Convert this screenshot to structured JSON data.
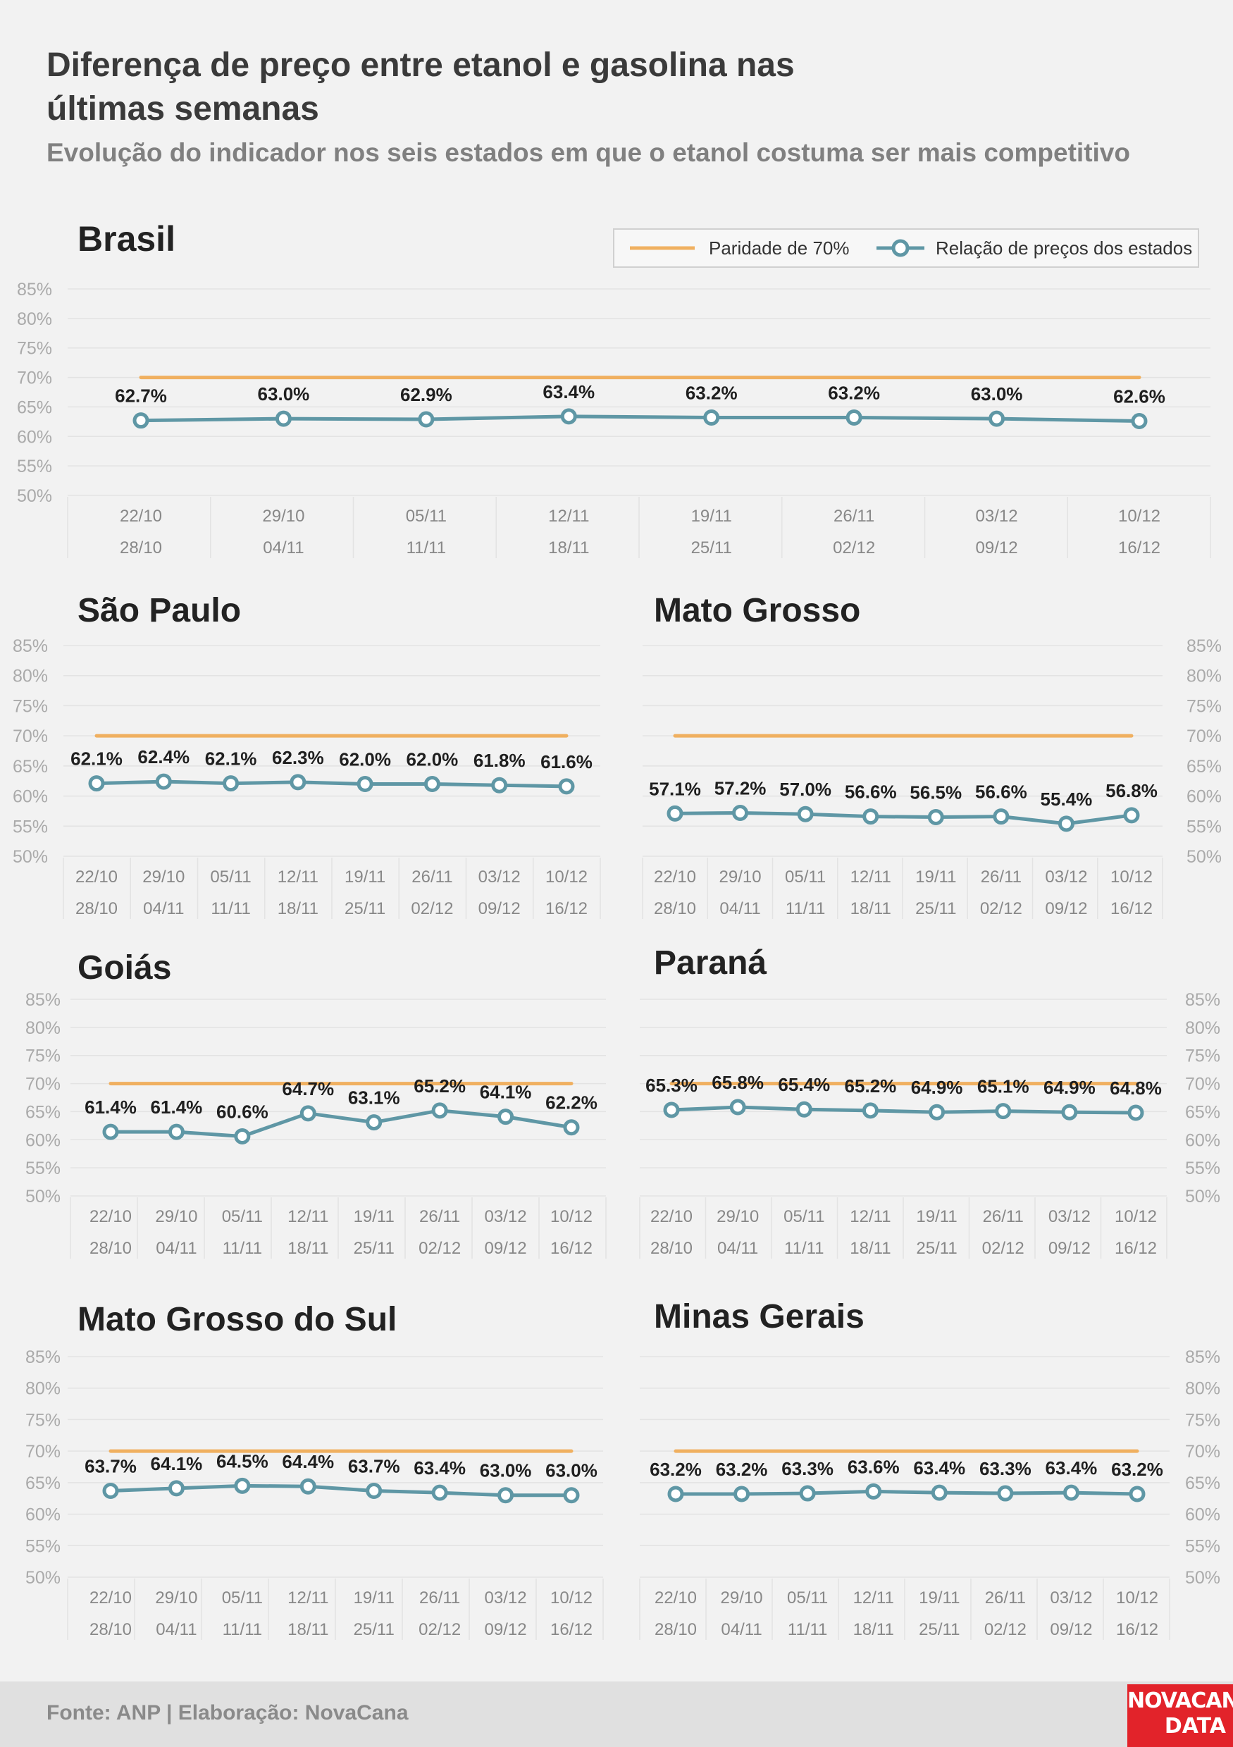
{
  "header": {
    "title": "Diferença de preço entre etanol e gasolina nas últimas semanas",
    "subtitle": "Evolução do indicador nos seis estados em que o etanol costuma ser mais competitivo"
  },
  "legend": {
    "parity_label": "Paridade de 70%",
    "series_label": "Relação de preços dos estados"
  },
  "footer": {
    "source": "Fonte: ANP | Elaboração: NovaCana",
    "logo_line1": "NOVACANA",
    "logo_line2": "DATA"
  },
  "colors": {
    "parity": "#f0b060",
    "series": "#5f97a5",
    "grid": "#e3e3e3",
    "axis_text": "#999999"
  },
  "chart_data": [
    {
      "type": "line",
      "title": "Brasil",
      "categories": [
        [
          "22/10",
          "28/10"
        ],
        [
          "29/10",
          "04/11"
        ],
        [
          "05/11",
          "11/11"
        ],
        [
          "12/11",
          "18/11"
        ],
        [
          "19/11",
          "25/11"
        ],
        [
          "26/11",
          "02/12"
        ],
        [
          "03/12",
          "09/12"
        ],
        [
          "10/12",
          "16/12"
        ]
      ],
      "yticks": [
        "85%",
        "80%",
        "75%",
        "70%",
        "65%",
        "60%",
        "55%",
        "50%"
      ],
      "ylim": [
        50,
        85
      ],
      "y_axis_side": "left",
      "parity": 70,
      "values": [
        62.7,
        63.0,
        62.9,
        63.4,
        63.2,
        63.2,
        63.0,
        62.6
      ],
      "labels": [
        "62.7%",
        "63.0%",
        "62.9%",
        "63.4%",
        "63.2%",
        "63.2%",
        "63.0%",
        "62.6%"
      ]
    },
    {
      "type": "line",
      "title": "São Paulo",
      "categories": [
        [
          "22/10",
          "28/10"
        ],
        [
          "29/10",
          "04/11"
        ],
        [
          "05/11",
          "11/11"
        ],
        [
          "12/11",
          "18/11"
        ],
        [
          "19/11",
          "25/11"
        ],
        [
          "26/11",
          "02/12"
        ],
        [
          "03/12",
          "09/12"
        ],
        [
          "10/12",
          "16/12"
        ]
      ],
      "yticks": [
        "85%",
        "80%",
        "75%",
        "70%",
        "65%",
        "60%",
        "55%",
        "50%"
      ],
      "ylim": [
        50,
        85
      ],
      "y_axis_side": "left",
      "parity": 70,
      "values": [
        62.1,
        62.4,
        62.1,
        62.3,
        62.0,
        62.0,
        61.8,
        61.6
      ],
      "labels": [
        "62.1%",
        "62.4%",
        "62.1%",
        "62.3%",
        "62.0%",
        "62.0%",
        "61.8%",
        "61.6%"
      ]
    },
    {
      "type": "line",
      "title": "Mato Grosso",
      "categories": [
        [
          "22/10",
          "28/10"
        ],
        [
          "29/10",
          "04/11"
        ],
        [
          "05/11",
          "11/11"
        ],
        [
          "12/11",
          "18/11"
        ],
        [
          "19/11",
          "25/11"
        ],
        [
          "26/11",
          "02/12"
        ],
        [
          "03/12",
          "09/12"
        ],
        [
          "10/12",
          "16/12"
        ]
      ],
      "yticks": [
        "85%",
        "80%",
        "75%",
        "70%",
        "65%",
        "60%",
        "55%",
        "50%"
      ],
      "ylim": [
        50,
        85
      ],
      "y_axis_side": "right",
      "parity": 70,
      "values": [
        57.1,
        57.2,
        57.0,
        56.6,
        56.5,
        56.6,
        55.4,
        56.8
      ],
      "labels": [
        "57.1%",
        "57.2%",
        "57.0%",
        "56.6%",
        "56.5%",
        "56.6%",
        "55.4%",
        "56.8%"
      ]
    },
    {
      "type": "line",
      "title": "Goiás",
      "categories": [
        [
          "22/10",
          "28/10"
        ],
        [
          "29/10",
          "04/11"
        ],
        [
          "05/11",
          "11/11"
        ],
        [
          "12/11",
          "18/11"
        ],
        [
          "19/11",
          "25/11"
        ],
        [
          "26/11",
          "02/12"
        ],
        [
          "03/12",
          "09/12"
        ],
        [
          "10/12",
          "16/12"
        ]
      ],
      "yticks": [
        "85%",
        "80%",
        "75%",
        "70%",
        "65%",
        "60%",
        "55%",
        "50%"
      ],
      "ylim": [
        50,
        85
      ],
      "y_axis_side": "left",
      "parity": 70,
      "values": [
        61.4,
        61.4,
        60.6,
        64.7,
        63.1,
        65.2,
        64.1,
        62.2
      ],
      "labels": [
        "61.4%",
        "61.4%",
        "60.6%",
        "64.7%",
        "63.1%",
        "65.2%",
        "64.1%",
        "62.2%"
      ]
    },
    {
      "type": "line",
      "title": "Paraná",
      "categories": [
        [
          "22/10",
          "28/10"
        ],
        [
          "29/10",
          "04/11"
        ],
        [
          "05/11",
          "11/11"
        ],
        [
          "12/11",
          "18/11"
        ],
        [
          "19/11",
          "25/11"
        ],
        [
          "26/11",
          "02/12"
        ],
        [
          "03/12",
          "09/12"
        ],
        [
          "10/12",
          "16/12"
        ]
      ],
      "yticks": [
        "85%",
        "80%",
        "75%",
        "70%",
        "65%",
        "60%",
        "55%",
        "50%"
      ],
      "ylim": [
        50,
        85
      ],
      "y_axis_side": "right",
      "parity": 70,
      "values": [
        65.3,
        65.8,
        65.4,
        65.2,
        64.9,
        65.1,
        64.9,
        64.8
      ],
      "labels": [
        "65.3%",
        "65.8%",
        "65.4%",
        "65.2%",
        "64.9%",
        "65.1%",
        "64.9%",
        "64.8%"
      ]
    },
    {
      "type": "line",
      "title": "Mato Grosso do Sul",
      "categories": [
        [
          "22/10",
          "28/10"
        ],
        [
          "29/10",
          "04/11"
        ],
        [
          "05/11",
          "11/11"
        ],
        [
          "12/11",
          "18/11"
        ],
        [
          "19/11",
          "25/11"
        ],
        [
          "26/11",
          "02/12"
        ],
        [
          "03/12",
          "09/12"
        ],
        [
          "10/12",
          "16/12"
        ]
      ],
      "yticks": [
        "85%",
        "80%",
        "75%",
        "70%",
        "65%",
        "60%",
        "55%",
        "50%"
      ],
      "ylim": [
        50,
        85
      ],
      "y_axis_side": "left",
      "parity": 70,
      "values": [
        63.7,
        64.1,
        64.5,
        64.4,
        63.7,
        63.4,
        63.0,
        63.0
      ],
      "labels": [
        "63.7%",
        "64.1%",
        "64.5%",
        "64.4%",
        "63.7%",
        "63.4%",
        "63.0%",
        "63.0%"
      ]
    },
    {
      "type": "line",
      "title": "Minas Gerais",
      "categories": [
        [
          "22/10",
          "28/10"
        ],
        [
          "29/10",
          "04/11"
        ],
        [
          "05/11",
          "11/11"
        ],
        [
          "12/11",
          "18/11"
        ],
        [
          "19/11",
          "25/11"
        ],
        [
          "26/11",
          "02/12"
        ],
        [
          "03/12",
          "09/12"
        ],
        [
          "10/12",
          "16/12"
        ]
      ],
      "yticks": [
        "85%",
        "80%",
        "75%",
        "70%",
        "65%",
        "60%",
        "55%",
        "50%"
      ],
      "ylim": [
        50,
        85
      ],
      "y_axis_side": "right",
      "parity": 70,
      "values": [
        63.2,
        63.2,
        63.3,
        63.6,
        63.4,
        63.3,
        63.4,
        63.2
      ],
      "labels": [
        "63.2%",
        "63.2%",
        "63.3%",
        "63.6%",
        "63.4%",
        "63.3%",
        "63.4%",
        "63.2%"
      ]
    }
  ]
}
